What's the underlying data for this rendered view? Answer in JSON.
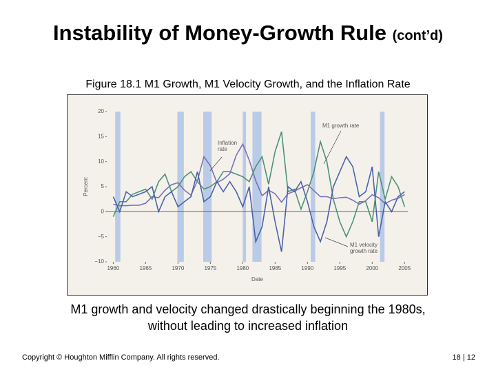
{
  "slide": {
    "title": "Instability of Money-Growth Rule",
    "title_suffix": "(cont’d)",
    "caption": [
      "M1 growth and velocity changed drastically beginning the 1980s,",
      "without leading to increased inflation"
    ],
    "copyright": "Copyright © Houghton Mifflin Company.  All rights reserved.",
    "page": "18 | 12"
  },
  "chart_data": {
    "type": "line",
    "title": "Figure 18.1 M1 Growth, M1 Velocity Growth, and the Inflation Rate",
    "x_label": "Date",
    "y_label": "Percent",
    "x": [
      1960,
      1961,
      1962,
      1963,
      1964,
      1965,
      1966,
      1967,
      1968,
      1969,
      1970,
      1971,
      1972,
      1973,
      1974,
      1975,
      1976,
      1977,
      1978,
      1979,
      1980,
      1981,
      1982,
      1983,
      1984,
      1985,
      1986,
      1987,
      1988,
      1989,
      1990,
      1991,
      1992,
      1993,
      1994,
      1995,
      1996,
      1997,
      1998,
      1999,
      2000,
      2001,
      2002,
      2003,
      2004,
      2005
    ],
    "xlim": [
      1959,
      2005.5
    ],
    "xticks": [
      1960,
      1965,
      1970,
      1975,
      1980,
      1985,
      1990,
      1995,
      2000,
      2005
    ],
    "ylim": [
      -10,
      20
    ],
    "yticks": [
      {
        "value": -10,
        "label": "−10"
      },
      {
        "value": -5,
        "label": "−5"
      },
      0,
      5,
      10,
      15,
      20
    ],
    "shaded_periods": [
      [
        1960.3,
        1961.1
      ],
      [
        1969.9,
        1970.9
      ],
      [
        1973.9,
        1975.2
      ],
      [
        1980.0,
        1980.5
      ],
      [
        1981.5,
        1982.9
      ],
      [
        1990.5,
        1991.2
      ],
      [
        2001.2,
        2001.9
      ]
    ],
    "shade_color": "#b9cbe6",
    "series": [
      {
        "color": "#4c9178",
        "values": [
          -1,
          2,
          2,
          3.5,
          4,
          4.5,
          2.5,
          6,
          7.5,
          4,
          5,
          7,
          8,
          6,
          4.5,
          5,
          6,
          8,
          8,
          7.5,
          7,
          6,
          9,
          11,
          5.5,
          12,
          16,
          4,
          4.5,
          0.5,
          4,
          8,
          14,
          10,
          2.5,
          -2,
          -5,
          -2,
          2,
          2,
          -2,
          8,
          2.5,
          7,
          5,
          1
        ]
      },
      {
        "color": "#7a70ba",
        "values": [
          1.5,
          1.2,
          1.2,
          1.3,
          1.3,
          1.7,
          3,
          2.8,
          4.3,
          5.4,
          5.8,
          4.3,
          3.3,
          6.2,
          11,
          9.2,
          5.8,
          6.5,
          7.6,
          11.3,
          13.5,
          10.3,
          6.2,
          3.2,
          4.3,
          3.6,
          1.9,
          3.6,
          4.1,
          4.8,
          5.4,
          4.2,
          3,
          3,
          2.6,
          2.8,
          2.9,
          2.3,
          1.5,
          2.2,
          3.4,
          2.8,
          1.6,
          2.3,
          2.7,
          3.4
        ]
      },
      {
        "color": "#4a62a8",
        "values": [
          3,
          0,
          4,
          3,
          3.5,
          4,
          5,
          0,
          3,
          4,
          1,
          2,
          3,
          8,
          2,
          3,
          6,
          4,
          6,
          4,
          1,
          5,
          -6,
          -3,
          5,
          -2,
          -8,
          5,
          4,
          6,
          2,
          -3,
          -6,
          -2,
          5,
          8,
          11,
          9,
          3,
          4,
          9,
          -5,
          2,
          0,
          3,
          4
        ]
      }
    ],
    "annotations": [
      [
        "M1 growth rate"
      ],
      [
        "Inflation",
        "rate"
      ],
      [
        "M1 velocity",
        "growth rate"
      ]
    ]
  }
}
